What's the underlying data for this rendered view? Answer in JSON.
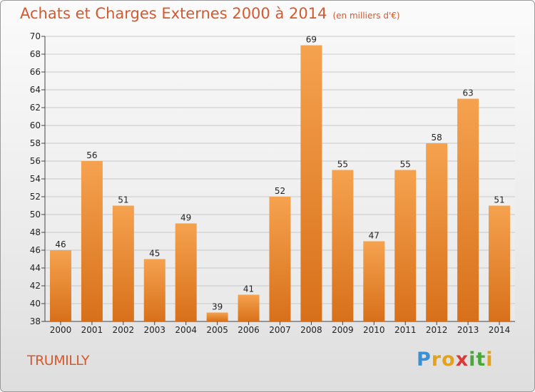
{
  "header": {
    "title": "Achats et Charges Externes 2000 à 2014",
    "unit": "(en milliers d'€)"
  },
  "commune": "TRUMILLY",
  "logo": {
    "letters": [
      "P",
      "r",
      "o",
      "x",
      "i",
      "t",
      "i"
    ],
    "colors": [
      "#3a8fd6",
      "#e3a21a",
      "#e3a21a",
      "#d83a3a",
      "#4aa83a",
      "#4aa83a",
      "#e3a21a"
    ]
  },
  "chart_data": {
    "type": "bar",
    "title": "Achats et Charges Externes 2000 à 2014",
    "subtitle": "(en milliers d'€)",
    "categories": [
      "2000",
      "2001",
      "2002",
      "2003",
      "2004",
      "2005",
      "2006",
      "2007",
      "2008",
      "2009",
      "2010",
      "2011",
      "2012",
      "2013",
      "2014"
    ],
    "values": [
      46,
      56,
      51,
      45,
      49,
      39,
      41,
      52,
      69,
      55,
      47,
      55,
      58,
      63,
      51
    ],
    "ylim": [
      38,
      70
    ],
    "yticks": [
      38,
      40,
      42,
      44,
      46,
      48,
      50,
      52,
      54,
      56,
      58,
      60,
      62,
      64,
      66,
      68,
      70
    ],
    "grid": true,
    "bar_color_top": "#f5a24f",
    "bar_color_bottom": "#d8701a"
  }
}
